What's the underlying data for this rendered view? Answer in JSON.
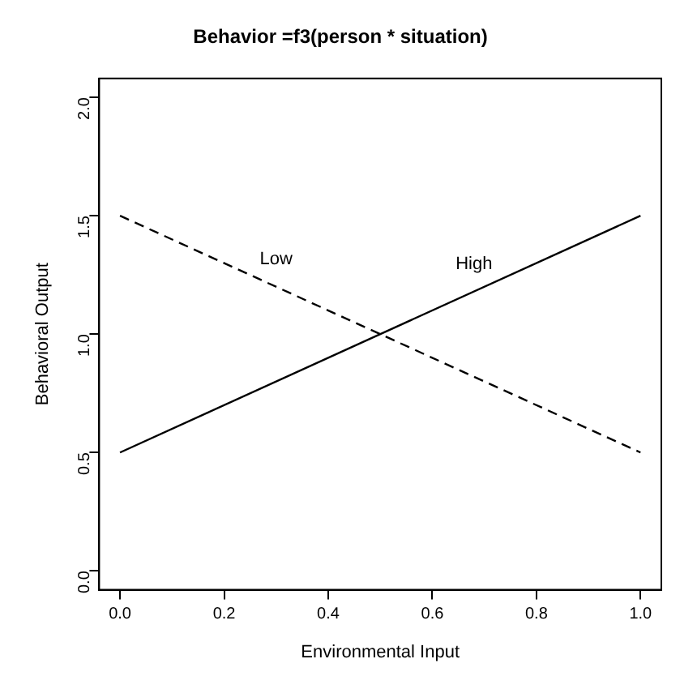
{
  "chart_data": {
    "type": "line",
    "title": "Behavior =f3(person * situation)",
    "xlabel": "Environmental Input",
    "ylabel": "Behavioral Output",
    "x": [
      0,
      1
    ],
    "series": [
      {
        "name": "High",
        "color": "#000000",
        "values": [
          0.5,
          1.5
        ],
        "line_style": "solid"
      },
      {
        "name": "Low",
        "color": "#000000",
        "values": [
          1.5,
          0.5
        ],
        "line_style": "dashed"
      }
    ],
    "xlim": [
      -0.04,
      1.04
    ],
    "ylim": [
      -0.08,
      2.08
    ],
    "xticks": [
      {
        "value": 0,
        "label": "0.0"
      },
      {
        "value": 0.2,
        "label": "0.2"
      },
      {
        "value": 0.4,
        "label": "0.4"
      },
      {
        "value": 0.6,
        "label": "0.6"
      },
      {
        "value": 0.8,
        "label": "0.8"
      },
      {
        "value": 1,
        "label": "1.0"
      }
    ],
    "yticks": [
      {
        "value": 0,
        "label": "0.0"
      },
      {
        "value": 0.5,
        "label": "0.5"
      },
      {
        "value": 1,
        "label": "1.0"
      },
      {
        "value": 1.5,
        "label": "1.5"
      },
      {
        "value": 2,
        "label": "2.0"
      }
    ],
    "grid": false,
    "legend": false,
    "marker": "none"
  }
}
